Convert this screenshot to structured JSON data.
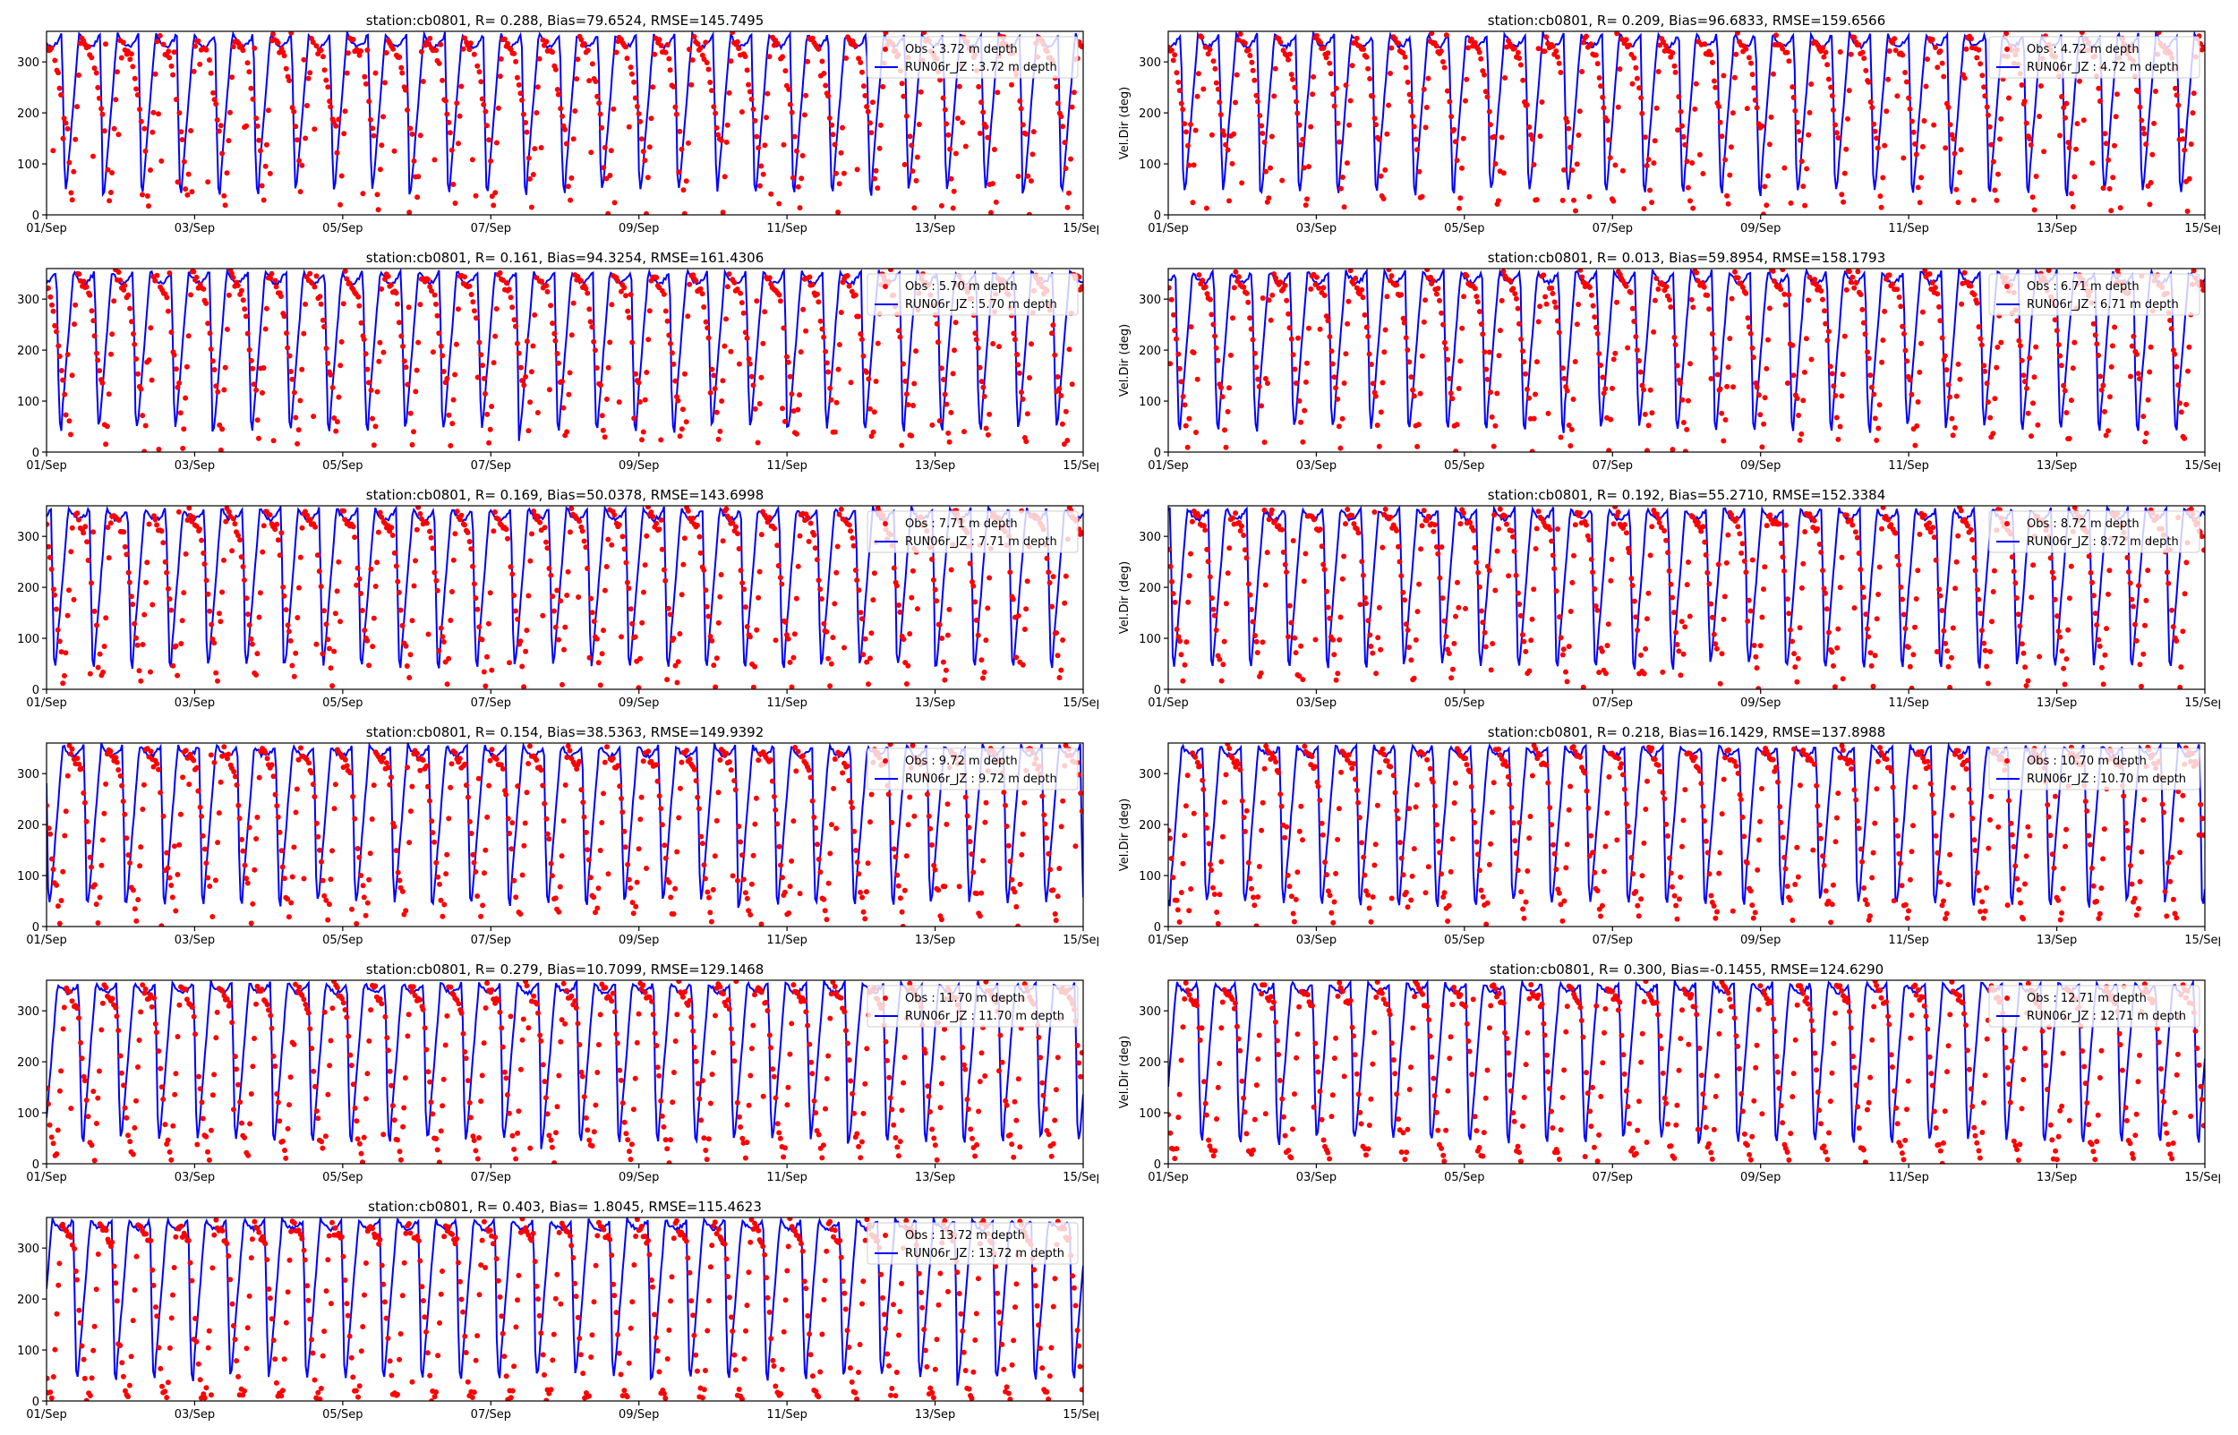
{
  "figure": {
    "x_tick_labels": [
      "01/Sep",
      "03/Sep",
      "05/Sep",
      "07/Sep",
      "09/Sep",
      "11/Sep",
      "13/Sep",
      "15/Sep"
    ],
    "colors": {
      "obs": "#ff0000",
      "model": "#0000ff"
    }
  },
  "chart_data": [
    {
      "type": "scatter",
      "title": "station:cb0801, R= 0.288, Bias=79.6524, RMSE=145.7495",
      "xlabel": "",
      "ylabel": "",
      "xlim": [
        "2000-09-01",
        "2000-09-15"
      ],
      "ylim": [
        0,
        360
      ],
      "yticks": [
        0,
        100,
        200,
        300
      ],
      "grid": false,
      "legend_position": "top-right",
      "series": [
        {
          "name": "Obs : 3.72 m depth",
          "mark": "point",
          "color": "#ff0000"
        },
        {
          "name": "RUN06r_JZ : 3.72 m depth",
          "mark": "line",
          "color": "#0000ff"
        }
      ],
      "depth_m": 3.72
    },
    {
      "type": "scatter",
      "title": "station:cb0801, R= 0.209, Bias=96.6833, RMSE=159.6566",
      "xlabel": "",
      "ylabel": "Vel.Dir (deg)",
      "xlim": [
        "2000-09-01",
        "2000-09-15"
      ],
      "ylim": [
        0,
        360
      ],
      "yticks": [
        0,
        100,
        200,
        300
      ],
      "grid": false,
      "legend_position": "top-right",
      "series": [
        {
          "name": "Obs : 4.72 m depth",
          "mark": "point",
          "color": "#ff0000"
        },
        {
          "name": "RUN06r_JZ : 4.72 m depth",
          "mark": "line",
          "color": "#0000ff"
        }
      ],
      "depth_m": 4.72
    },
    {
      "type": "scatter",
      "title": "station:cb0801, R= 0.161, Bias=94.3254, RMSE=161.4306",
      "xlabel": "",
      "ylabel": "",
      "xlim": [
        "2000-09-01",
        "2000-09-15"
      ],
      "ylim": [
        0,
        360
      ],
      "yticks": [
        0,
        100,
        200,
        300
      ],
      "grid": false,
      "legend_position": "top-right",
      "series": [
        {
          "name": "Obs : 5.70 m depth",
          "mark": "point",
          "color": "#ff0000"
        },
        {
          "name": "RUN06r_JZ : 5.70 m depth",
          "mark": "line",
          "color": "#0000ff"
        }
      ],
      "depth_m": 5.7
    },
    {
      "type": "scatter",
      "title": "station:cb0801, R= 0.013, Bias=59.8954, RMSE=158.1793",
      "xlabel": "",
      "ylabel": "Vel.Dir (deg)",
      "xlim": [
        "2000-09-01",
        "2000-09-15"
      ],
      "ylim": [
        0,
        360
      ],
      "yticks": [
        0,
        100,
        200,
        300
      ],
      "grid": false,
      "legend_position": "top-right",
      "series": [
        {
          "name": "Obs : 6.71 m depth",
          "mark": "point",
          "color": "#ff0000"
        },
        {
          "name": "RUN06r_JZ : 6.71 m depth",
          "mark": "line",
          "color": "#0000ff"
        }
      ],
      "depth_m": 6.71
    },
    {
      "type": "scatter",
      "title": "station:cb0801, R= 0.169, Bias=50.0378, RMSE=143.6998",
      "xlabel": "",
      "ylabel": "",
      "xlim": [
        "2000-09-01",
        "2000-09-15"
      ],
      "ylim": [
        0,
        360
      ],
      "yticks": [
        0,
        100,
        200,
        300
      ],
      "grid": false,
      "legend_position": "top-right",
      "series": [
        {
          "name": "Obs : 7.71 m depth",
          "mark": "point",
          "color": "#ff0000"
        },
        {
          "name": "RUN06r_JZ : 7.71 m depth",
          "mark": "line",
          "color": "#0000ff"
        }
      ],
      "depth_m": 7.71
    },
    {
      "type": "scatter",
      "title": "station:cb0801, R= 0.192, Bias=55.2710, RMSE=152.3384",
      "xlabel": "",
      "ylabel": "Vel.Dir (deg)",
      "xlim": [
        "2000-09-01",
        "2000-09-15"
      ],
      "ylim": [
        0,
        360
      ],
      "yticks": [
        0,
        100,
        200,
        300
      ],
      "grid": false,
      "legend_position": "top-right",
      "series": [
        {
          "name": "Obs : 8.72 m depth",
          "mark": "point",
          "color": "#ff0000"
        },
        {
          "name": "RUN06r_JZ : 8.72 m depth",
          "mark": "line",
          "color": "#0000ff"
        }
      ],
      "depth_m": 8.72
    },
    {
      "type": "scatter",
      "title": "station:cb0801, R= 0.154, Bias=38.5363, RMSE=149.9392",
      "xlabel": "",
      "ylabel": "",
      "xlim": [
        "2000-09-01",
        "2000-09-15"
      ],
      "ylim": [
        0,
        360
      ],
      "yticks": [
        0,
        100,
        200,
        300
      ],
      "grid": false,
      "legend_position": "top-right",
      "series": [
        {
          "name": "Obs : 9.72 m depth",
          "mark": "point",
          "color": "#ff0000"
        },
        {
          "name": "RUN06r_JZ : 9.72 m depth",
          "mark": "line",
          "color": "#0000ff"
        }
      ],
      "depth_m": 9.72
    },
    {
      "type": "scatter",
      "title": "station:cb0801, R= 0.218, Bias=16.1429, RMSE=137.8988",
      "xlabel": "",
      "ylabel": "Vel.Dir (deg)",
      "xlim": [
        "2000-09-01",
        "2000-09-15"
      ],
      "ylim": [
        0,
        360
      ],
      "yticks": [
        0,
        100,
        200,
        300
      ],
      "grid": false,
      "legend_position": "top-right",
      "series": [
        {
          "name": "Obs : 10.70 m depth",
          "mark": "point",
          "color": "#ff0000"
        },
        {
          "name": "RUN06r_JZ : 10.70 m depth",
          "mark": "line",
          "color": "#0000ff"
        }
      ],
      "depth_m": 10.7
    },
    {
      "type": "scatter",
      "title": "station:cb0801, R= 0.279, Bias=10.7099, RMSE=129.1468",
      "xlabel": "",
      "ylabel": "",
      "xlim": [
        "2000-09-01",
        "2000-09-15"
      ],
      "ylim": [
        0,
        360
      ],
      "yticks": [
        0,
        100,
        200,
        300
      ],
      "grid": false,
      "legend_position": "top-right",
      "series": [
        {
          "name": "Obs : 11.70 m depth",
          "mark": "point",
          "color": "#ff0000"
        },
        {
          "name": "RUN06r_JZ : 11.70 m depth",
          "mark": "line",
          "color": "#0000ff"
        }
      ],
      "depth_m": 11.7
    },
    {
      "type": "scatter",
      "title": "station:cb0801, R= 0.300, Bias=-0.1455, RMSE=124.6290",
      "xlabel": "",
      "ylabel": "Vel.Dir (deg)",
      "xlim": [
        "2000-09-01",
        "2000-09-15"
      ],
      "ylim": [
        0,
        360
      ],
      "yticks": [
        0,
        100,
        200,
        300
      ],
      "grid": false,
      "legend_position": "top-right",
      "series": [
        {
          "name": "Obs : 12.71 m depth",
          "mark": "point",
          "color": "#ff0000"
        },
        {
          "name": "RUN06r_JZ : 12.71 m depth",
          "mark": "line",
          "color": "#0000ff"
        }
      ],
      "depth_m": 12.71
    },
    {
      "type": "scatter",
      "title": "station:cb0801, R= 0.403, Bias= 1.8045, RMSE=115.4623",
      "xlabel": "",
      "ylabel": "",
      "xlim": [
        "2000-09-01",
        "2000-09-15"
      ],
      "ylim": [
        0,
        360
      ],
      "yticks": [
        0,
        100,
        200,
        300
      ],
      "grid": false,
      "legend_position": "top-right",
      "series": [
        {
          "name": "Obs : 13.72 m depth",
          "mark": "point",
          "color": "#ff0000"
        },
        {
          "name": "RUN06r_JZ : 13.72 m depth",
          "mark": "line",
          "color": "#0000ff"
        }
      ],
      "depth_m": 13.72
    }
  ]
}
